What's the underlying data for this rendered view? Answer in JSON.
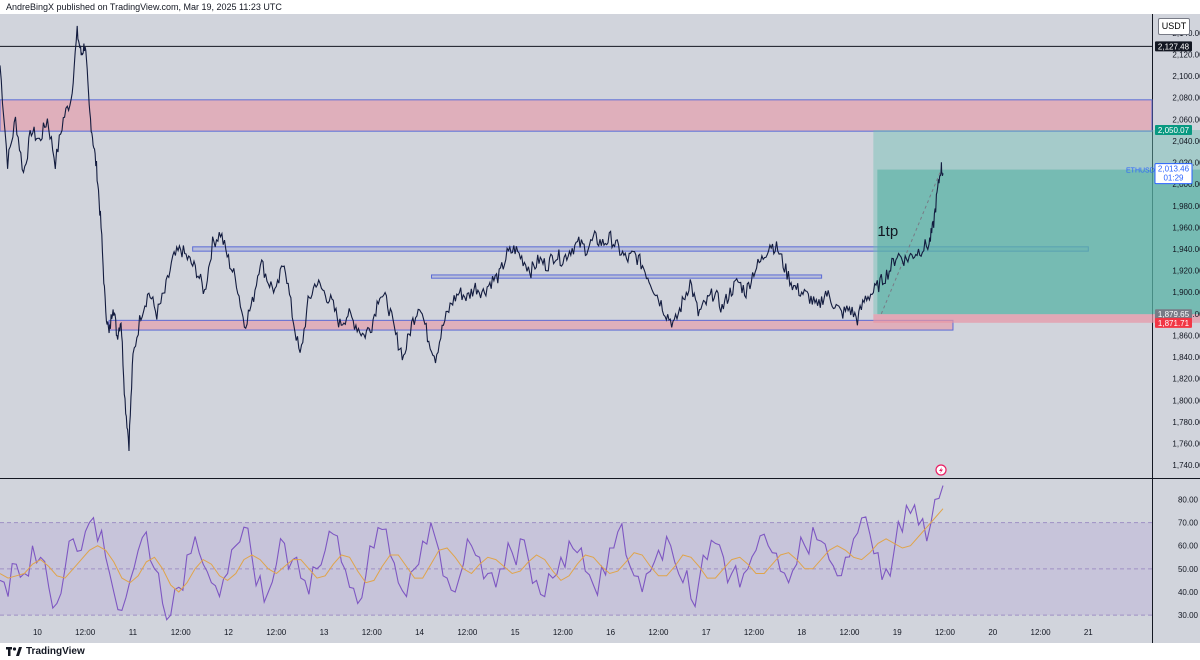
{
  "header": {
    "publisher": "AndreBingX published on TradingView.com, Mar 19, 2025 11:23 UTC"
  },
  "footer": {
    "brand": "TradingView"
  },
  "colors": {
    "background": "#d1d4dc",
    "candle": "#131c3f",
    "supply_zone": "#e8a0ab",
    "zone_border": "#5b6bd6",
    "target_zone": "#6fc1b3",
    "stop_zone": "#e8a0ab",
    "rsi_line": "#7e57c2",
    "rsi_ma": "#e0a44a",
    "rsi_band": "#c9c3da"
  },
  "chart_data": [
    {
      "type": "line",
      "name": "ETHUSDT price chart",
      "symbol_label": "ETHUSDT",
      "unit": "USDT",
      "ylim": [
        1730,
        2150
      ],
      "y_ticks": [
        1740,
        1760,
        1780,
        1800,
        1820,
        1840,
        1860,
        1880,
        1900,
        1920,
        1940,
        1960,
        1980,
        2000,
        2020,
        2040,
        2060,
        2080,
        2100,
        2120,
        2140
      ],
      "y_tick_labels": [
        "1,740.00",
        "1,760.00",
        "1,780.00",
        "1,800.00",
        "1,820.00",
        "1,840.00",
        "1,860.00",
        "1,880.00",
        "1,900.00",
        "1,920.00",
        "1,940.00",
        "1,960.00",
        "1,980.00",
        "2,000.00",
        "2,020.00",
        "2,040.00",
        "2,060.00",
        "2,080.00",
        "2,100.00",
        "2,120.00",
        "2,140.00"
      ],
      "x_ticks": [
        "10",
        "12:00",
        "11",
        "12:00",
        "12",
        "12:00",
        "13",
        "12:00",
        "14",
        "12:00",
        "15",
        "12:00",
        "16",
        "12:00",
        "17",
        "12:00",
        "18",
        "12:00",
        "19",
        "12:00",
        "20",
        "12:00",
        "21"
      ],
      "x_tick_hours": [
        0,
        12,
        24,
        36,
        48,
        60,
        72,
        84,
        96,
        108,
        120,
        132,
        144,
        156,
        168,
        180,
        192,
        204,
        216,
        228,
        240,
        252,
        264
      ],
      "x_hours_range": [
        -9.4,
        280
      ],
      "price_path": [
        [
          -9.4,
          2110
        ],
        [
          -7.5,
          2020
        ],
        [
          -5.5,
          2060
        ],
        [
          -3.5,
          2010
        ],
        [
          -1.5,
          2050
        ],
        [
          0.5,
          2040
        ],
        [
          2.5,
          2060
        ],
        [
          4.5,
          2020
        ],
        [
          6.5,
          2060
        ],
        [
          8.5,
          2080
        ],
        [
          10,
          2140
        ],
        [
          11,
          2120
        ],
        [
          12,
          2130
        ],
        [
          13,
          2070
        ],
        [
          14,
          2040
        ],
        [
          15,
          2010
        ],
        [
          16,
          1960
        ],
        [
          17,
          1890
        ],
        [
          18,
          1860
        ],
        [
          19,
          1890
        ],
        [
          20,
          1860
        ],
        [
          21,
          1875
        ],
        [
          22,
          1800
        ],
        [
          23,
          1760
        ],
        [
          24,
          1840
        ],
        [
          26,
          1880
        ],
        [
          28,
          1900
        ],
        [
          30,
          1880
        ],
        [
          32,
          1900
        ],
        [
          34,
          1930
        ],
        [
          36,
          1940
        ],
        [
          38,
          1930
        ],
        [
          40,
          1920
        ],
        [
          42,
          1900
        ],
        [
          44,
          1945
        ],
        [
          46,
          1955
        ],
        [
          48,
          1930
        ],
        [
          50,
          1910
        ],
        [
          52,
          1870
        ],
        [
          54,
          1890
        ],
        [
          56,
          1930
        ],
        [
          58,
          1910
        ],
        [
          60,
          1900
        ],
        [
          62,
          1930
        ],
        [
          64,
          1880
        ],
        [
          66,
          1840
        ],
        [
          68,
          1890
        ],
        [
          70,
          1910
        ],
        [
          72,
          1900
        ],
        [
          74,
          1890
        ],
        [
          76,
          1870
        ],
        [
          78,
          1880
        ],
        [
          80,
          1870
        ],
        [
          82,
          1860
        ],
        [
          84,
          1870
        ],
        [
          86,
          1900
        ],
        [
          88,
          1890
        ],
        [
          90,
          1860
        ],
        [
          92,
          1840
        ],
        [
          94,
          1870
        ],
        [
          96,
          1890
        ],
        [
          98,
          1860
        ],
        [
          100,
          1840
        ],
        [
          102,
          1870
        ],
        [
          104,
          1890
        ],
        [
          106,
          1900
        ],
        [
          108,
          1895
        ],
        [
          110,
          1905
        ],
        [
          112,
          1900
        ],
        [
          114,
          1910
        ],
        [
          116,
          1915
        ],
        [
          118,
          1935
        ],
        [
          120,
          1940
        ],
        [
          122,
          1930
        ],
        [
          124,
          1920
        ],
        [
          126,
          1930
        ],
        [
          128,
          1925
        ],
        [
          130,
          1935
        ],
        [
          132,
          1930
        ],
        [
          134,
          1940
        ],
        [
          136,
          1945
        ],
        [
          138,
          1940
        ],
        [
          140,
          1950
        ],
        [
          142,
          1945
        ],
        [
          144,
          1950
        ],
        [
          146,
          1940
        ],
        [
          148,
          1930
        ],
        [
          150,
          1935
        ],
        [
          152,
          1925
        ],
        [
          154,
          1910
        ],
        [
          156,
          1895
        ],
        [
          158,
          1880
        ],
        [
          160,
          1870
        ],
        [
          162,
          1890
        ],
        [
          164,
          1910
        ],
        [
          166,
          1880
        ],
        [
          168,
          1890
        ],
        [
          170,
          1900
        ],
        [
          172,
          1885
        ],
        [
          174,
          1900
        ],
        [
          176,
          1910
        ],
        [
          178,
          1900
        ],
        [
          180,
          1920
        ],
        [
          182,
          1930
        ],
        [
          184,
          1945
        ],
        [
          186,
          1940
        ],
        [
          188,
          1920
        ],
        [
          190,
          1905
        ],
        [
          192,
          1900
        ],
        [
          194,
          1895
        ],
        [
          196,
          1885
        ],
        [
          198,
          1900
        ],
        [
          200,
          1890
        ],
        [
          202,
          1880
        ],
        [
          204,
          1885
        ],
        [
          206,
          1875
        ],
        [
          208,
          1895
        ],
        [
          210,
          1900
        ],
        [
          212,
          1910
        ],
        [
          214,
          1920
        ],
        [
          216,
          1935
        ],
        [
          218,
          1930
        ],
        [
          220,
          1935
        ],
        [
          222,
          1940
        ],
        [
          224,
          1945
        ],
        [
          225,
          1960
        ],
        [
          226,
          1990
        ],
        [
          227,
          2016
        ],
        [
          227.5,
          2010
        ]
      ],
      "zones": [
        {
          "name": "supply-zone",
          "kind": "supply",
          "x_from": -9.4,
          "x_to": 280,
          "y_from": 2049,
          "y_to": 2078
        },
        {
          "name": "resistance-box-1",
          "kind": "level",
          "x_from": 39,
          "x_to": 264,
          "y_from": 1938,
          "y_to": 1942
        },
        {
          "name": "resistance-box-2",
          "kind": "level",
          "x_from": 99,
          "x_to": 197,
          "y_from": 1913,
          "y_to": 1916
        },
        {
          "name": "support-zone",
          "kind": "support",
          "x_from": 18,
          "x_to": 230,
          "y_from": 1865,
          "y_to": 1874
        }
      ],
      "position": {
        "type": "long",
        "x_from": 210,
        "x_to": 316,
        "entry": 1879.65,
        "target": 2050.07,
        "stop": 1871.71,
        "current": 2013.46,
        "label": "1tp",
        "label_price": 1952
      },
      "horizontal_lines": [
        {
          "name": "high-line",
          "price": 2127.48
        }
      ],
      "price_labels": [
        {
          "name": "high-price-label",
          "text": "2,127.48",
          "price": 2127.48,
          "bg": "#131722",
          "fg": "#ffffff"
        },
        {
          "name": "target-price-label",
          "text": "2,050.07",
          "price": 2050.07,
          "bg": "#089981",
          "fg": "#ffffff"
        },
        {
          "name": "entry-price-label",
          "text": "1,879.65",
          "price": 1879.65,
          "bg": "#787b86",
          "fg": "#ffffff"
        },
        {
          "name": "stop-price-label",
          "text": "1,871.71",
          "price": 1871.71,
          "bg": "#f23645",
          "fg": "#ffffff"
        }
      ],
      "current_price": {
        "text": "2,013.46",
        "countdown": "01:29",
        "price": 2013.46
      }
    },
    {
      "type": "line",
      "name": "RSI",
      "ylim": [
        27,
        88
      ],
      "y_ticks": [
        30,
        40,
        50,
        60,
        70,
        80
      ],
      "y_tick_labels": [
        "30.00",
        "40.00",
        "50.00",
        "60.00",
        "70.00",
        "80.00"
      ],
      "upper_band": 70,
      "middle_band": 50,
      "lower_band": 30,
      "series": [
        {
          "name": "RSI",
          "values": [
            45,
            38,
            52,
            48,
            60,
            55,
            42,
            35,
            50,
            63,
            58,
            70,
            62,
            55,
            40,
            32,
            45,
            58,
            66,
            50,
            35,
            30,
            42,
            56,
            64,
            52,
            44,
            38,
            48,
            60,
            68,
            55,
            47,
            40,
            52,
            61,
            54,
            46,
            39,
            50,
            58,
            65,
            53,
            42,
            35,
            47,
            59,
            67,
            56,
            44,
            38,
            50,
            62,
            70,
            58,
            46,
            40,
            52,
            60,
            55,
            48,
            42,
            50,
            57,
            63,
            54,
            45,
            38,
            46,
            55,
            62,
            57,
            49,
            43,
            51,
            59,
            66,
            56,
            47,
            40,
            49,
            58,
            64,
            53,
            44,
            37,
            45,
            54,
            61,
            55,
            48,
            42,
            50,
            58,
            65,
            57,
            49,
            44,
            52,
            60,
            68,
            62,
            54,
            47,
            55,
            63,
            72,
            65,
            57,
            50,
            58,
            66,
            74,
            69,
            62,
            80,
            86
          ]
        },
        {
          "name": "RSI-based MA",
          "values": [
            48,
            46,
            47,
            48,
            52,
            54,
            51,
            47,
            46,
            50,
            54,
            58,
            60,
            58,
            53,
            46,
            44,
            47,
            53,
            55,
            50,
            43,
            40,
            44,
            50,
            54,
            52,
            47,
            45,
            48,
            54,
            56,
            54,
            50,
            48,
            51,
            54,
            54,
            50,
            46,
            47,
            52,
            56,
            55,
            49,
            44,
            45,
            51,
            56,
            56,
            51,
            46,
            46,
            52,
            58,
            59,
            55,
            50,
            48,
            52,
            55,
            54,
            51,
            48,
            49,
            53,
            56,
            54,
            49,
            45,
            47,
            52,
            56,
            55,
            51,
            48,
            49,
            53,
            57,
            56,
            51,
            47,
            47,
            51,
            56,
            55,
            51,
            46,
            46,
            50,
            54,
            55,
            52,
            48,
            48,
            52,
            56,
            57,
            54,
            50,
            50,
            54,
            58,
            60,
            58,
            55,
            54,
            57,
            61,
            63,
            61,
            59,
            60,
            64,
            68,
            72,
            76
          ]
        }
      ]
    }
  ]
}
